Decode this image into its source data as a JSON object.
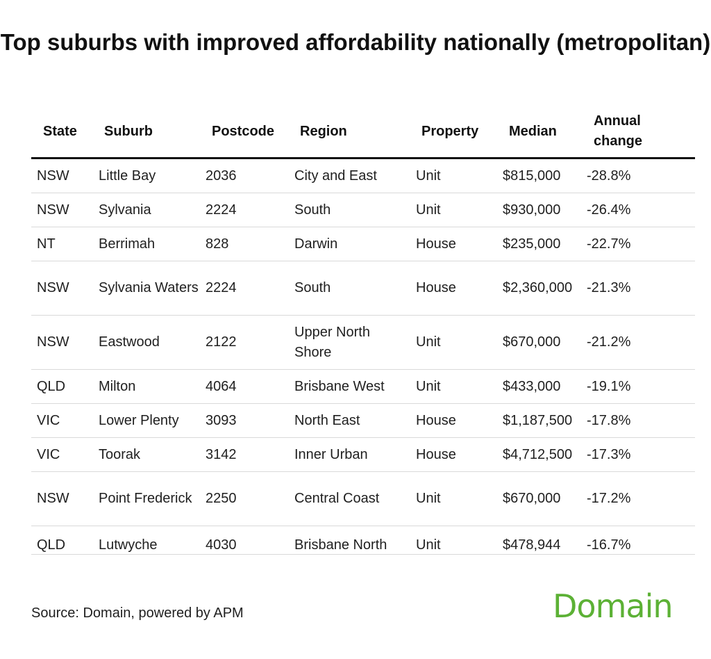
{
  "title": "Top suburbs with improved affordability nationally (metropolitan)",
  "headers": [
    "State",
    "Suburb",
    "Postcode",
    "Region",
    "Property",
    "Median",
    "Annual change"
  ],
  "chart_data": {
    "type": "table",
    "title": "Top suburbs with improved affordability nationally (metropolitan)",
    "columns": [
      "State",
      "Suburb",
      "Postcode",
      "Region",
      "Property",
      "Median",
      "Annual change"
    ],
    "rows": [
      [
        "NSW",
        "Little Bay",
        "2036",
        "City and East",
        "Unit",
        "$815,000",
        "-28.8%"
      ],
      [
        "NSW",
        "Sylvania",
        "2224",
        "South",
        "Unit",
        "$930,000",
        "-26.4%"
      ],
      [
        "NT",
        "Berrimah",
        "828",
        "Darwin",
        "House",
        "$235,000",
        "-22.7%"
      ],
      [
        "NSW",
        "Sylvania Waters",
        "2224",
        "South",
        "House",
        "$2,360,000",
        "-21.3%"
      ],
      [
        "NSW",
        "Eastwood",
        "2122",
        "Upper North Shore",
        "Unit",
        "$670,000",
        "-21.2%"
      ],
      [
        "QLD",
        "Milton",
        "4064",
        "Brisbane West",
        "Unit",
        "$433,000",
        "-19.1%"
      ],
      [
        "VIC",
        "Lower Plenty",
        "3093",
        "North East",
        "House",
        "$1,187,500",
        "-17.8%"
      ],
      [
        "VIC",
        "Toorak",
        "3142",
        "Inner Urban",
        "House",
        "$4,712,500",
        "-17.3%"
      ],
      [
        "NSW",
        "Point Frederick",
        "2250",
        "Central Coast",
        "Unit",
        "$670,000",
        "-17.2%"
      ],
      [
        "QLD",
        "Lutwyche",
        "4030",
        "Brisbane North",
        "Unit",
        "$478,944",
        "-16.7%"
      ]
    ]
  },
  "source": "Source: Domain, powered by APM",
  "logo_text": "Domain",
  "colors": {
    "brand_green": "#5cb135",
    "header_rule": "#111111",
    "row_rule": "#d9d9d9"
  }
}
